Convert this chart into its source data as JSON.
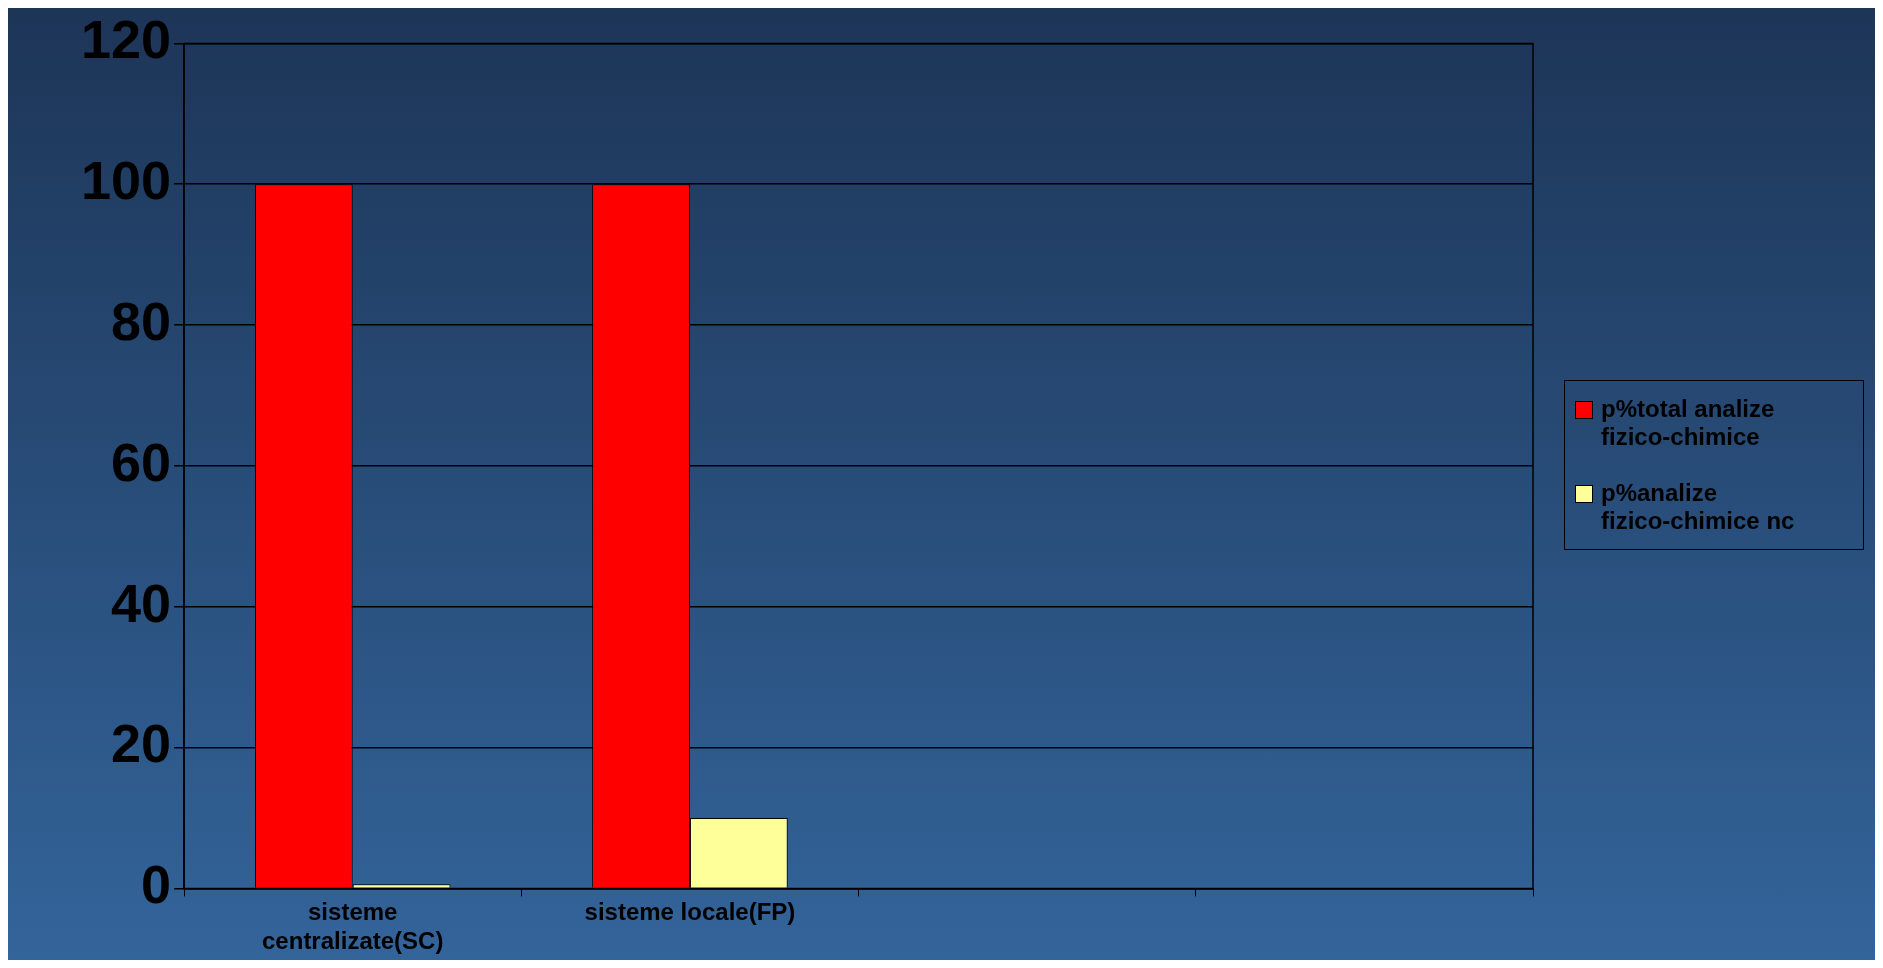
{
  "chart_data": {
    "type": "bar",
    "categories": [
      "sisteme centralizate(SC)",
      "sisteme locale(FP)",
      null,
      null
    ],
    "series": [
      {
        "name": "p%total analize fizico-chimice",
        "color": "#ff0000",
        "values": [
          100,
          100,
          null,
          null
        ]
      },
      {
        "name": "p%analize fizico-chimice nc",
        "color": "#ffff99",
        "values": [
          0.6,
          10,
          null,
          null
        ]
      }
    ],
    "ylim": [
      0,
      120
    ],
    "yticks": [
      0,
      20,
      40,
      60,
      80,
      100,
      120
    ],
    "grid": "y",
    "legend": "right"
  }
}
